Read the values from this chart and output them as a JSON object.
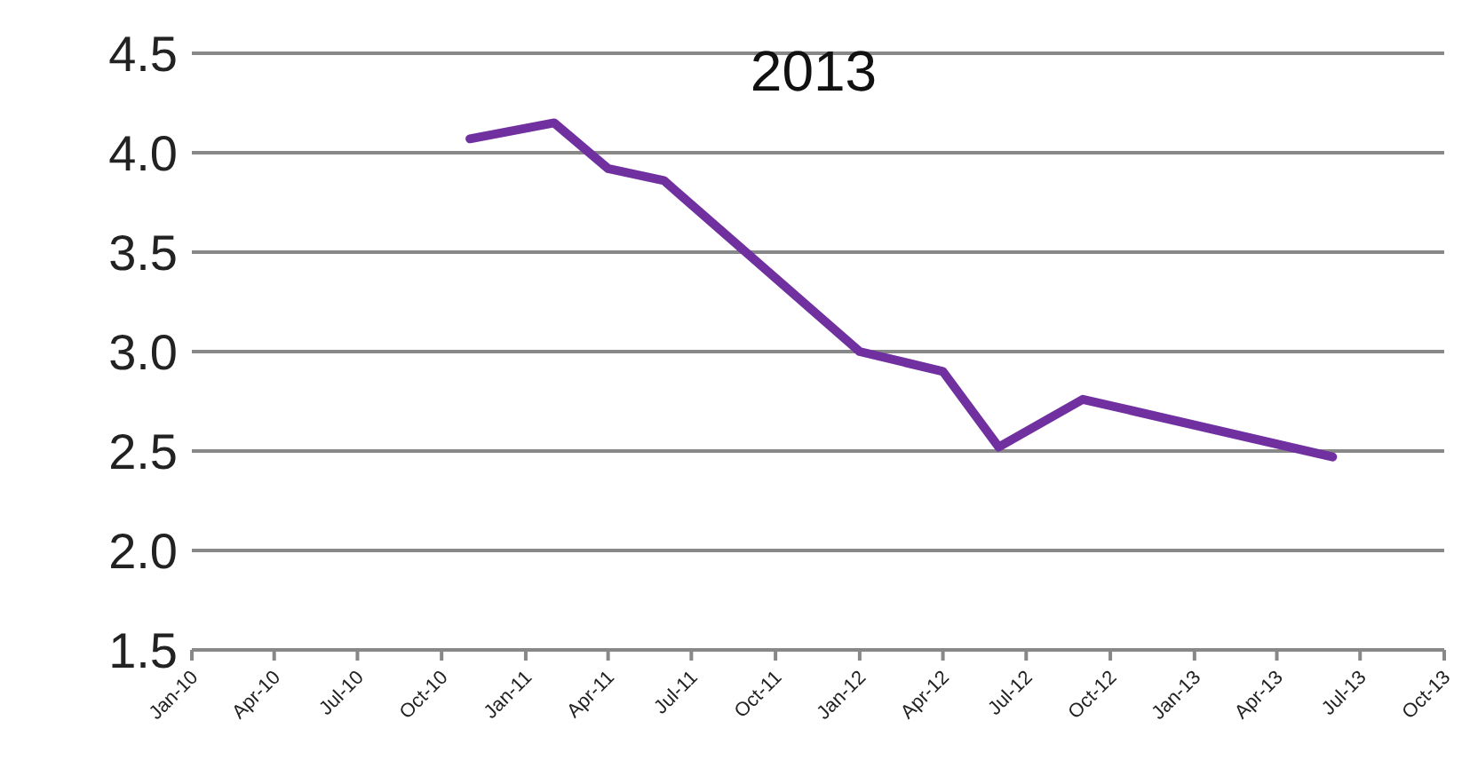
{
  "chart_data": {
    "type": "line",
    "title": "2013",
    "x": [
      "2010-11",
      "2011-02",
      "2011-04",
      "2011-06",
      "2012-01",
      "2012-04",
      "2012-06",
      "2012-09",
      "2013-06"
    ],
    "series": [
      {
        "color": "#7030a0",
        "values": [
          4.07,
          4.15,
          3.92,
          3.86,
          3.0,
          2.9,
          2.52,
          2.76,
          2.47
        ]
      }
    ],
    "xlim": [
      "2010-01",
      "2013-10"
    ],
    "xticks": [
      {
        "value": "2010-01",
        "label": "Jan-10"
      },
      {
        "value": "2010-04",
        "label": "Apr-10"
      },
      {
        "value": "2010-07",
        "label": "Jul-10"
      },
      {
        "value": "2010-10",
        "label": "Oct-10"
      },
      {
        "value": "2011-01",
        "label": "Jan-11"
      },
      {
        "value": "2011-04",
        "label": "Apr-11"
      },
      {
        "value": "2011-07",
        "label": "Jul-11"
      },
      {
        "value": "2011-10",
        "label": "Oct-11"
      },
      {
        "value": "2012-01",
        "label": "Jan-12"
      },
      {
        "value": "2012-04",
        "label": "Apr-12"
      },
      {
        "value": "2012-07",
        "label": "Jul-12"
      },
      {
        "value": "2012-10",
        "label": "Oct-12"
      },
      {
        "value": "2013-01",
        "label": "Jan-13"
      },
      {
        "value": "2013-04",
        "label": "Apr-13"
      },
      {
        "value": "2013-07",
        "label": "Jul-13"
      },
      {
        "value": "2013-10",
        "label": "Oct-13"
      }
    ],
    "ylim": [
      1.5,
      4.5
    ],
    "yticks": [
      {
        "value": 1.5,
        "label": "1.5"
      },
      {
        "value": 2,
        "label": "2.0"
      },
      {
        "value": 2.5,
        "label": "2.5"
      },
      {
        "value": 3,
        "label": "3.0"
      },
      {
        "value": 3.5,
        "label": "3.5"
      },
      {
        "value": 4,
        "label": "4.0"
      },
      {
        "value": 4.5,
        "label": "4.5"
      }
    ],
    "grid": "y"
  }
}
